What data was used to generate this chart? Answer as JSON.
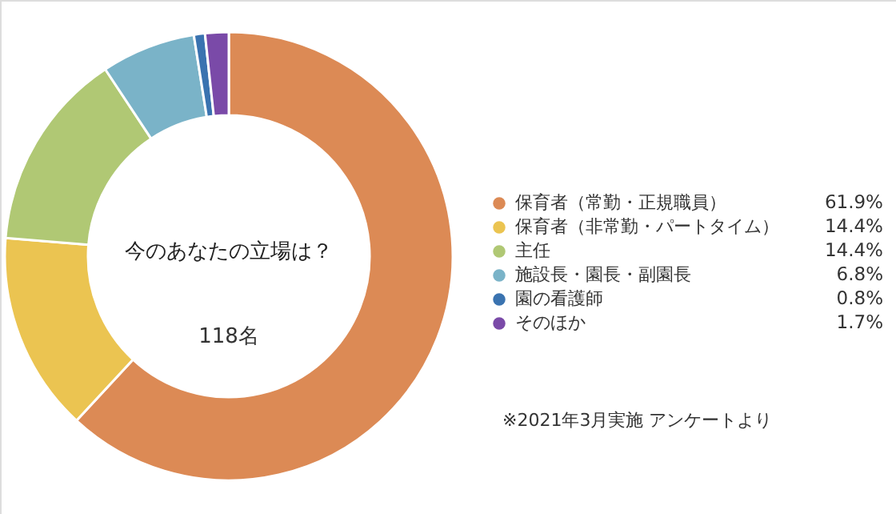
{
  "chart_data": {
    "type": "donut",
    "title": "今のあなたの立場は？",
    "categories": [
      "保育者（常勤・正規職員）",
      "保育者（非常勤・パートタイム）",
      "主任",
      "施設長・園長・副園長",
      "園の看護師",
      "そのほか"
    ],
    "values": [
      61.9,
      14.4,
      14.4,
      6.8,
      0.8,
      1.7
    ],
    "colors": [
      "#dc8a55",
      "#ebc451",
      "#b0c874",
      "#7ab3c8",
      "#3a73b0",
      "#7a4aa8"
    ],
    "value_labels": [
      "61.9%",
      "14.4%",
      "14.4%",
      "6.8%",
      "0.8%",
      "1.7%"
    ],
    "legend": "right",
    "annotations": [
      "118名",
      "※2021年3月実施 アンケートより"
    ]
  }
}
